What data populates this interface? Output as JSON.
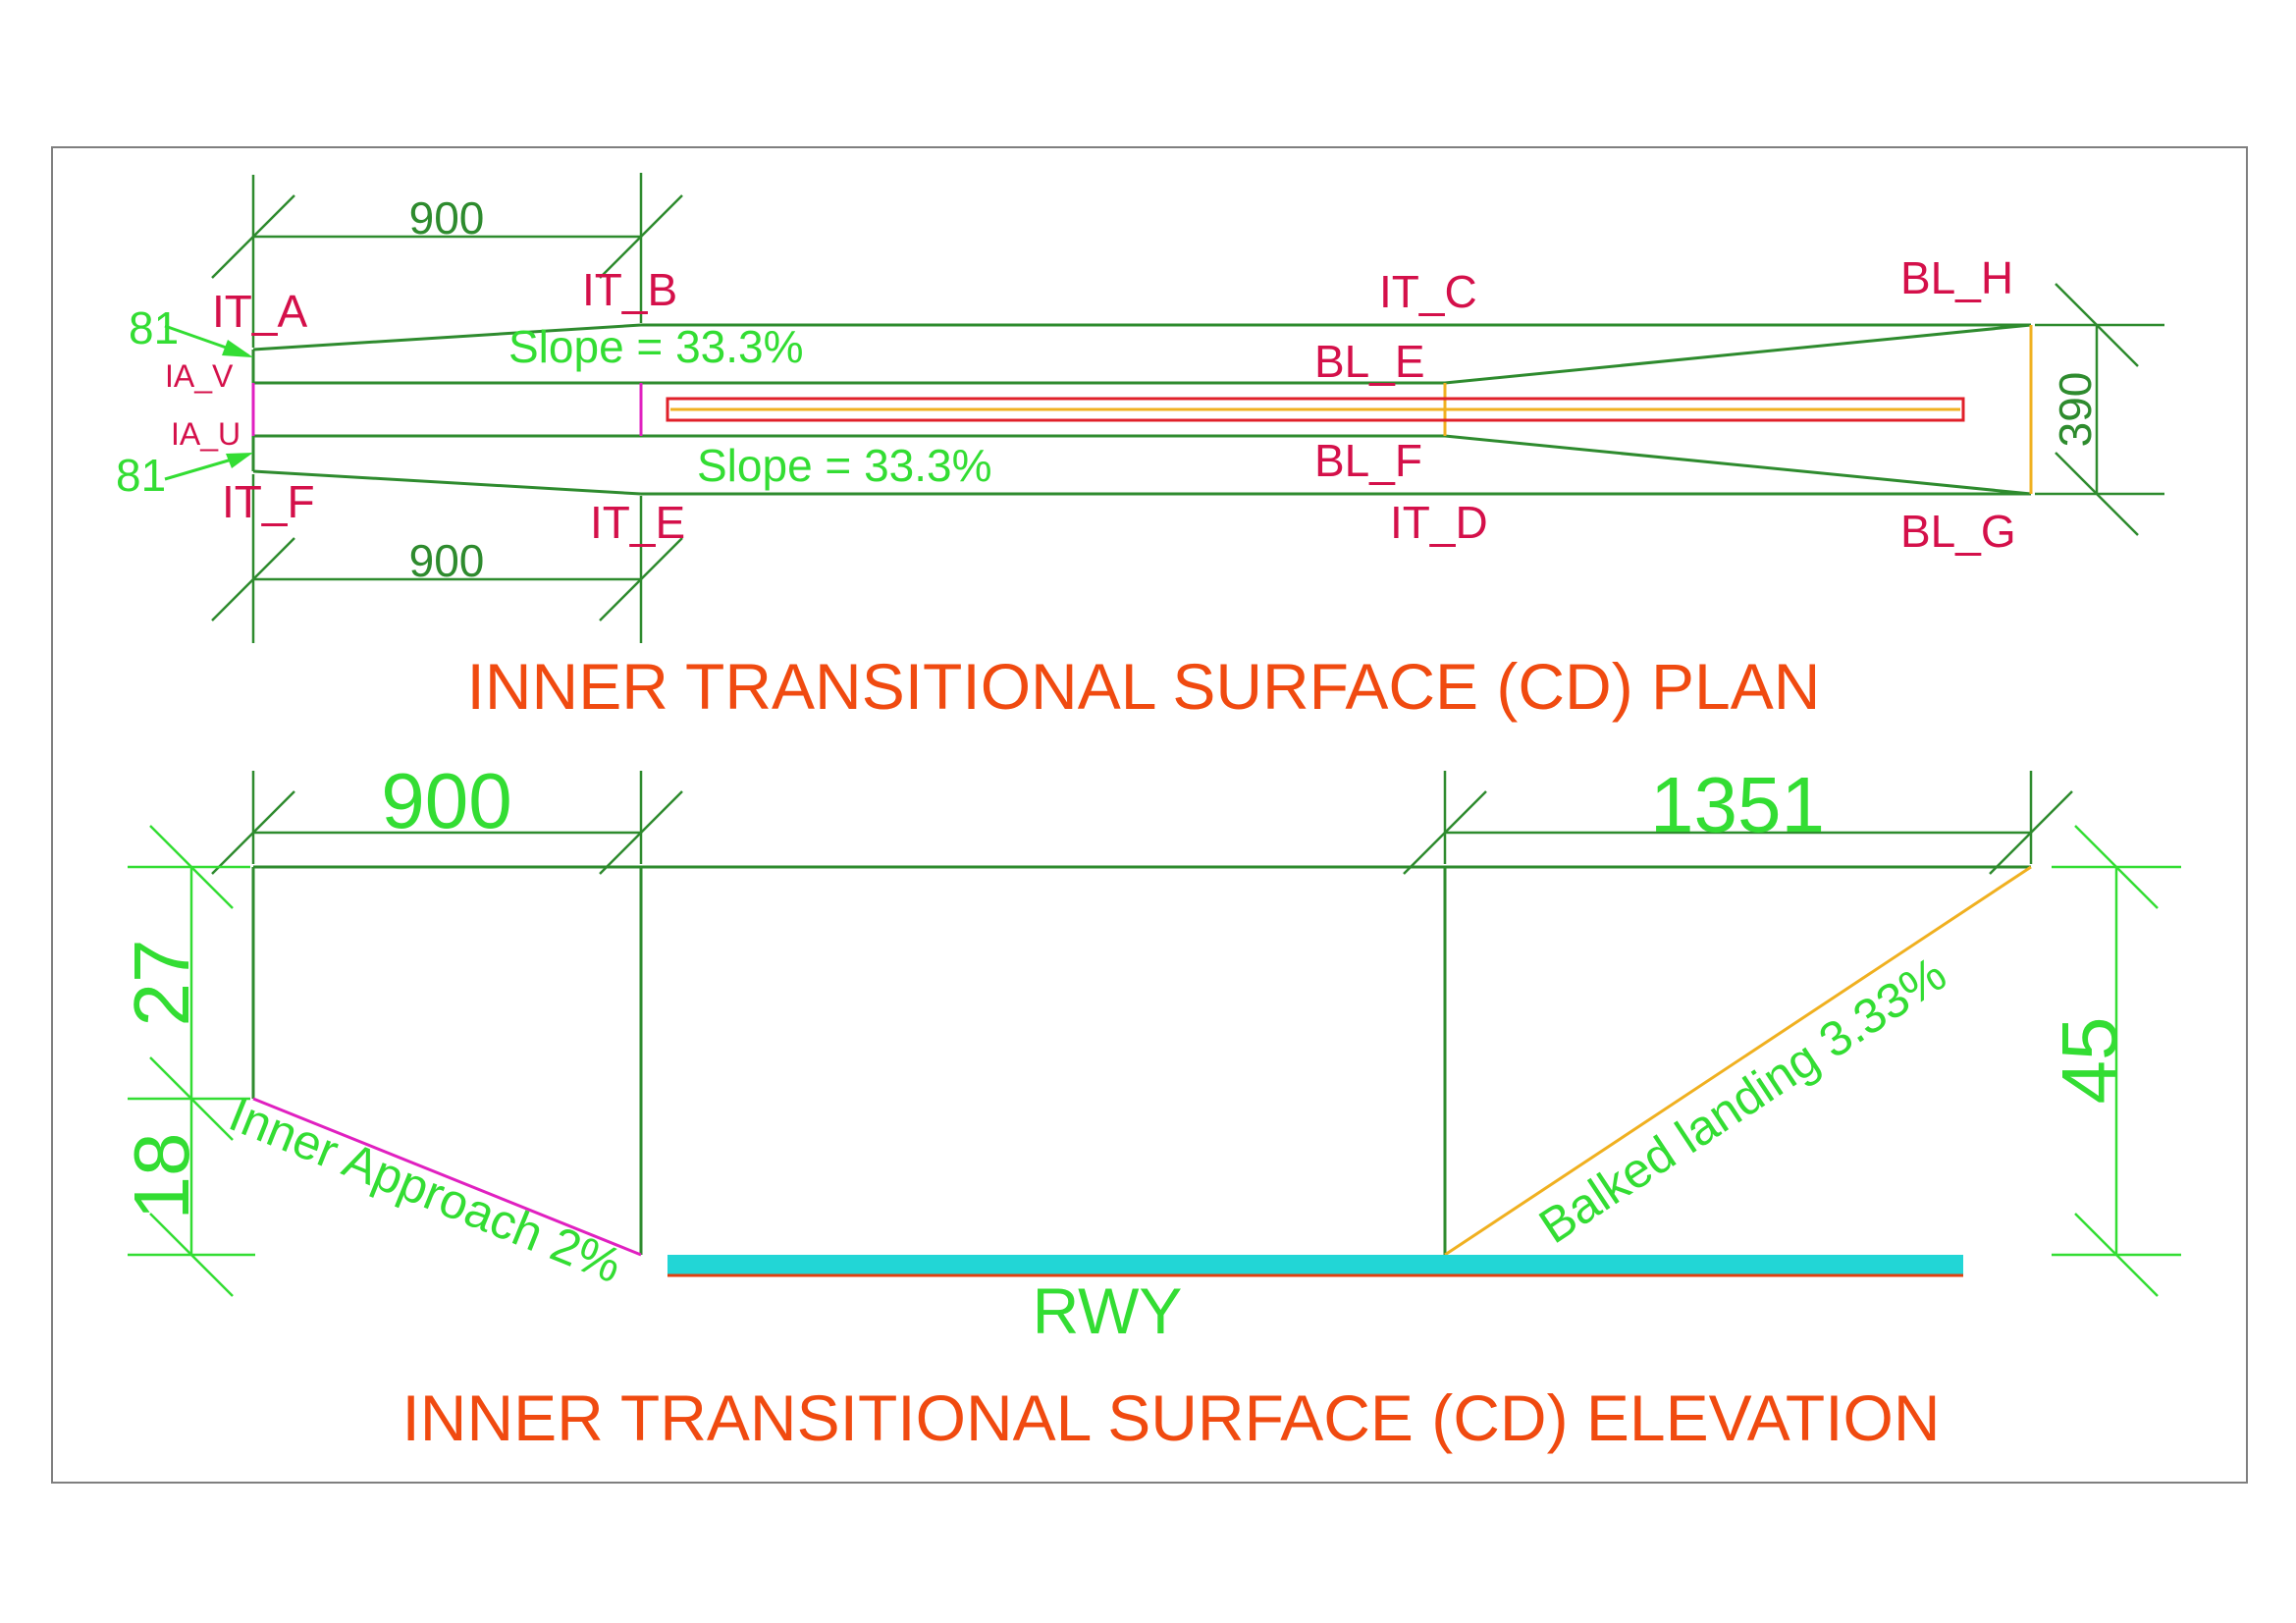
{
  "colors": {
    "frame": "#7f7f7f",
    "dark_green": "#2e8b2e",
    "bright_green": "#33dd33",
    "point_label": "#d4104a",
    "title": "#f04a10",
    "magenta": "#e020c0",
    "orange_line": "#f0b020",
    "runway_fill": "#22d6d6",
    "runway_edge": "#e04010"
  },
  "plan": {
    "title": "INNER TRANSITIONAL SURFACE (CD) PLAN",
    "points": {
      "it_a": "IT_A",
      "it_b": "IT_B",
      "it_c": "IT_C",
      "it_d": "IT_D",
      "it_e": "IT_E",
      "it_f": "IT_F",
      "bl_e": "BL_E",
      "bl_f": "BL_F",
      "bl_g": "BL_G",
      "bl_h": "BL_H",
      "ia_v": "IA_V",
      "ia_u": "IA_U"
    },
    "slope_top": "Slope = 33.3%",
    "slope_bottom": "Slope = 33.3%",
    "dim_top": "900",
    "dim_bottom": "900",
    "dim_width": "390",
    "leader_top": "81",
    "leader_bottom": "81"
  },
  "elevation": {
    "title": "INNER TRANSITIONAL SURFACE (CD) ELEVATION",
    "dim_left_span": "900",
    "dim_right_span": "1351",
    "dim_upper_height": "27",
    "dim_lower_height": "18",
    "dim_total_height": "45",
    "inner_approach_label": "Inner Approach 2%",
    "balked_landing_label": "Balked landing 3.33%",
    "runway_label": "RWY"
  }
}
